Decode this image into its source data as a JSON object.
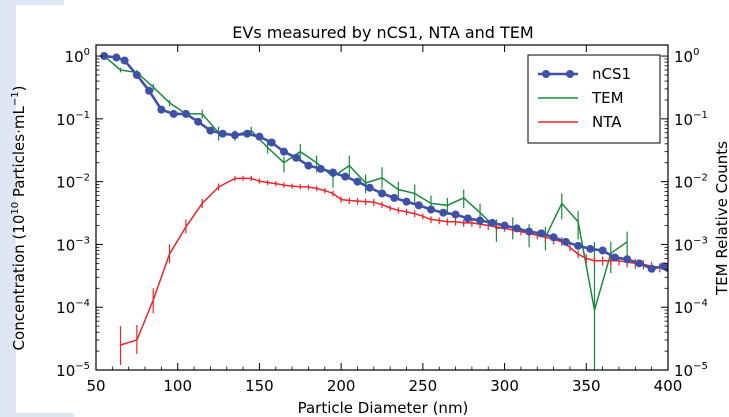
{
  "colors": {
    "page_shape": "#dfe7f4",
    "ncs1": "#3f51a6",
    "tem": "#1a8a3a",
    "nta": "#e8262b"
  },
  "chart_data": {
    "type": "line",
    "title": "EVs measured by nCS1, NTA and TEM",
    "xlabel": "Particle Diameter (nm)",
    "ylabel_left_prefix": "Concentration (10",
    "ylabel_left_exp": "10",
    "ylabel_left_middle": " Particles·mL",
    "ylabel_left_exp2": "−1",
    "ylabel_left_suffix": ")",
    "ylabel_right": "TEM Relative Counts",
    "x_scale": "linear",
    "y_scale": "log",
    "xlim": [
      50,
      400
    ],
    "ylim_left": [
      1e-05,
      1.5
    ],
    "ylim_right": [
      1e-05,
      1.5
    ],
    "x_ticks": [
      50,
      100,
      150,
      200,
      250,
      300,
      350,
      400
    ],
    "x_tick_labels": [
      "50",
      "100",
      "150",
      "200",
      "250",
      "300",
      "350",
      "400"
    ],
    "y_ticks": [
      {
        "value": 1,
        "base": "10",
        "exp": "0"
      },
      {
        "value": 0.1,
        "base": "10",
        "exp": "−1"
      },
      {
        "value": 0.01,
        "base": "10",
        "exp": "−2"
      },
      {
        "value": 0.001,
        "base": "10",
        "exp": "−3"
      },
      {
        "value": 0.0001,
        "base": "10",
        "exp": "−4"
      },
      {
        "value": 1e-05,
        "base": "10",
        "exp": "−5"
      }
    ],
    "legend_position": "top-right",
    "grid": false,
    "series": [
      {
        "name": "nCS1",
        "axis": "left",
        "marker": "circle",
        "x": [
          55,
          62.5,
          67.5,
          75,
          82.5,
          90,
          97.5,
          105,
          112.5,
          120,
          127.5,
          135,
          142.5,
          150,
          157.5,
          165,
          172.5,
          180,
          187.5,
          195,
          202.5,
          210,
          217.5,
          225,
          232.5,
          240,
          247.5,
          255,
          262.5,
          270,
          277.5,
          285,
          292.5,
          300,
          307.5,
          315,
          322.5,
          330,
          337.5,
          345,
          352.5,
          360,
          367.5,
          375,
          382.5,
          390,
          397.5,
          400
        ],
        "y": [
          1.0,
          0.95,
          0.85,
          0.5,
          0.28,
          0.14,
          0.12,
          0.12,
          0.09,
          0.065,
          0.058,
          0.055,
          0.058,
          0.052,
          0.042,
          0.03,
          0.024,
          0.018,
          0.016,
          0.014,
          0.012,
          0.01,
          0.008,
          0.0065,
          0.0055,
          0.0048,
          0.0042,
          0.0036,
          0.0032,
          0.003,
          0.0026,
          0.0024,
          0.0022,
          0.002,
          0.0018,
          0.0016,
          0.0015,
          0.0013,
          0.0011,
          0.00095,
          0.00085,
          0.0008,
          0.00062,
          0.00058,
          0.0005,
          0.00041,
          0.00045,
          0.00042
        ]
      },
      {
        "name": "TEM",
        "axis": "right",
        "marker": "errorbar",
        "x": [
          55,
          65,
          75,
          85,
          95,
          105,
          115,
          125,
          135,
          145,
          155,
          165,
          175,
          185,
          195,
          205,
          215,
          225,
          235,
          245,
          255,
          265,
          275,
          285,
          295,
          305,
          315,
          325,
          335,
          345,
          355,
          365,
          375
        ],
        "y": [
          1.0,
          0.6,
          0.55,
          0.32,
          0.18,
          0.12,
          0.12,
          0.06,
          0.055,
          0.065,
          0.035,
          0.02,
          0.03,
          0.02,
          0.012,
          0.018,
          0.0095,
          0.0115,
          0.0075,
          0.0065,
          0.0045,
          0.0042,
          0.0055,
          0.0032,
          0.0018,
          0.0019,
          0.0015,
          0.0013,
          0.0045,
          0.0023,
          9e-05,
          0.00072,
          0.0011
        ],
        "y_low": [
          0.95,
          0.55,
          0.5,
          0.28,
          0.16,
          0.105,
          0.1,
          0.045,
          0.045,
          0.055,
          0.028,
          0.014,
          0.022,
          0.014,
          0.008,
          0.011,
          0.0065,
          0.0078,
          0.0055,
          0.0045,
          0.0032,
          0.0031,
          0.0038,
          0.0022,
          0.0011,
          0.0012,
          0.0009,
          0.0008,
          0.0025,
          0.0012,
          9e-06,
          0.00035,
          0.0006
        ],
        "y_high": [
          1.05,
          0.65,
          0.6,
          0.36,
          0.2,
          0.135,
          0.14,
          0.075,
          0.065,
          0.075,
          0.043,
          0.025,
          0.04,
          0.026,
          0.016,
          0.026,
          0.013,
          0.017,
          0.01,
          0.009,
          0.006,
          0.0055,
          0.0075,
          0.0045,
          0.0025,
          0.0027,
          0.0021,
          0.0019,
          0.0065,
          0.0034,
          0.0011,
          0.0011,
          0.0016
        ]
      },
      {
        "name": "NTA",
        "axis": "left",
        "marker": "errorbar",
        "x": [
          65,
          75,
          85,
          95,
          105,
          115,
          125,
          135,
          140,
          145,
          150,
          155,
          160,
          165,
          170,
          175,
          180,
          185,
          190,
          195,
          200,
          205,
          210,
          215,
          220,
          225,
          230,
          235,
          240,
          245,
          250,
          255,
          260,
          265,
          270,
          275,
          280,
          285,
          290,
          295,
          300,
          305,
          310,
          315,
          320,
          325,
          330,
          335,
          340,
          345,
          350,
          355,
          360,
          365,
          370,
          375,
          380,
          385,
          390,
          395,
          400
        ],
        "y": [
          2.5e-05,
          3e-05,
          0.00013,
          0.0007,
          0.0019,
          0.0045,
          0.0082,
          0.0112,
          0.0113,
          0.0112,
          0.0102,
          0.0097,
          0.0093,
          0.0088,
          0.0085,
          0.0083,
          0.0082,
          0.0078,
          0.0072,
          0.0065,
          0.0052,
          0.005,
          0.0049,
          0.0048,
          0.0047,
          0.0043,
          0.0038,
          0.0035,
          0.0033,
          0.0031,
          0.0028,
          0.0025,
          0.0024,
          0.0023,
          0.0023,
          0.0022,
          0.0022,
          0.0021,
          0.002,
          0.0019,
          0.0018,
          0.0017,
          0.0016,
          0.0015,
          0.0014,
          0.0013,
          0.0012,
          0.0011,
          0.0009,
          0.0007,
          0.0006,
          0.00055,
          0.00055,
          0.00055,
          0.00055,
          0.00052,
          0.0005,
          0.00048,
          0.00045,
          0.00043,
          0.00042
        ],
        "y_low": [
          1.2e-05,
          1.8e-05,
          8e-05,
          0.0005,
          0.0015,
          0.0038,
          0.0072,
          0.0102,
          0.0103,
          0.0102,
          0.0093,
          0.0088,
          0.0084,
          0.008,
          0.0077,
          0.0075,
          0.0074,
          0.007,
          0.0065,
          0.0058,
          0.0046,
          0.0044,
          0.0043,
          0.0042,
          0.0041,
          0.0038,
          0.0034,
          0.0031,
          0.0029,
          0.0027,
          0.0025,
          0.0022,
          0.0021,
          0.002,
          0.002,
          0.0019,
          0.0019,
          0.0018,
          0.0017,
          0.0016,
          0.0016,
          0.0015,
          0.0014,
          0.0013,
          0.0012,
          0.0011,
          0.001,
          0.00095,
          0.00078,
          0.0006,
          0.0005,
          0.00046,
          0.00046,
          0.00046,
          0.00046,
          0.00043,
          0.00041,
          0.0004,
          0.00037,
          0.00036,
          0.00035
        ],
        "y_high": [
          5e-05,
          5.2e-05,
          0.0002,
          0.001,
          0.0025,
          0.0053,
          0.0093,
          0.0123,
          0.0124,
          0.0123,
          0.0112,
          0.0106,
          0.0102,
          0.0097,
          0.0093,
          0.0091,
          0.009,
          0.0086,
          0.0079,
          0.0072,
          0.0058,
          0.0056,
          0.0055,
          0.0054,
          0.0053,
          0.0048,
          0.0042,
          0.0039,
          0.0037,
          0.0035,
          0.0031,
          0.0028,
          0.0027,
          0.0026,
          0.0026,
          0.0025,
          0.0025,
          0.0024,
          0.0023,
          0.0022,
          0.0021,
          0.0019,
          0.0018,
          0.0017,
          0.0016,
          0.0015,
          0.0014,
          0.0013,
          0.0011,
          0.0008,
          0.0007,
          0.00064,
          0.00064,
          0.00064,
          0.00064,
          0.00061,
          0.00059,
          0.00056,
          0.00053,
          0.0005,
          0.00049
        ]
      }
    ]
  }
}
